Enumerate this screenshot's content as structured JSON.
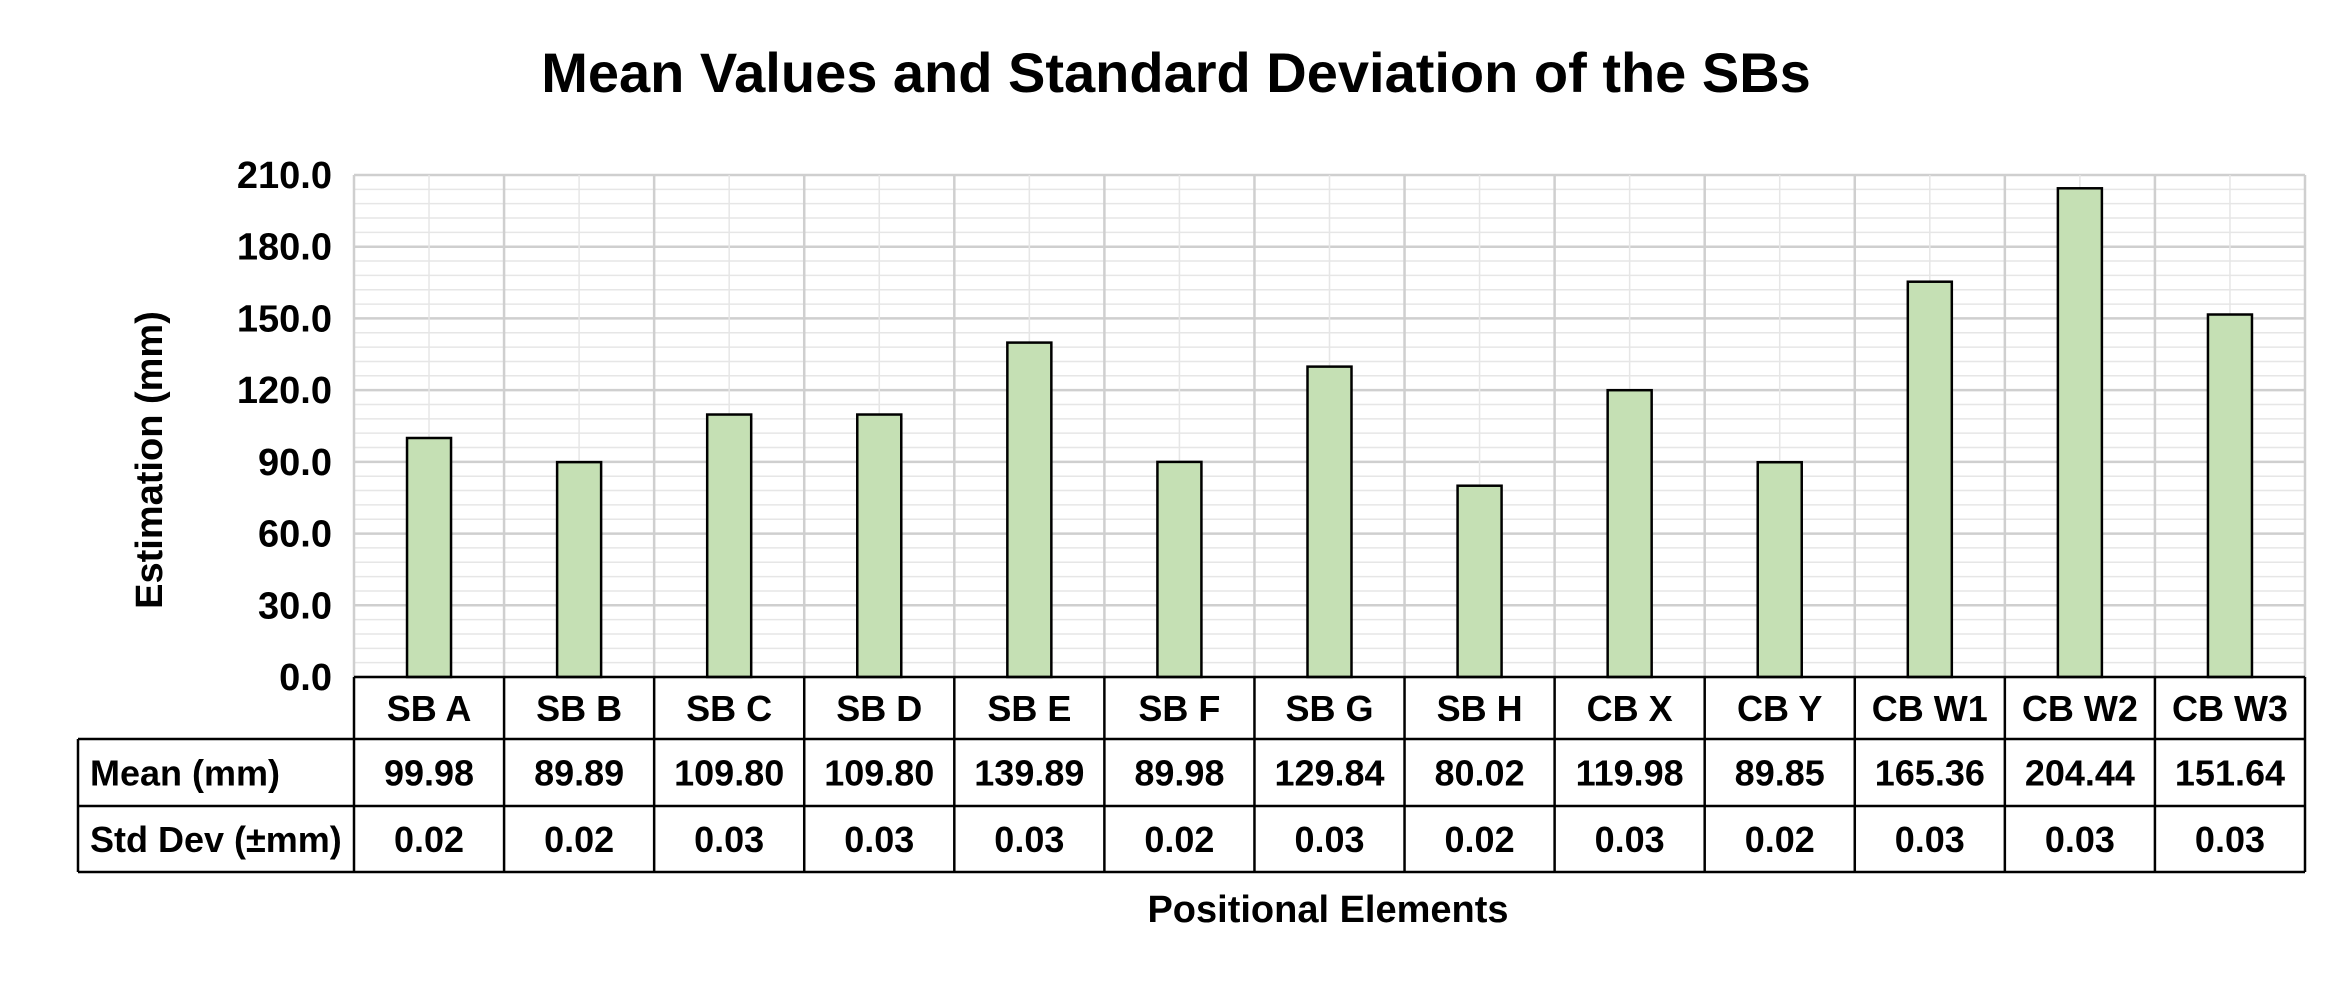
{
  "chart_data": {
    "type": "bar",
    "title": "Mean Values and Standard Deviation of the SBs",
    "xlabel": "Positional Elements",
    "ylabel": "Estimation (mm)",
    "ylim": [
      0,
      210
    ],
    "yticks": [
      "0.0",
      "30.0",
      "60.0",
      "90.0",
      "120.0",
      "150.0",
      "180.0",
      "210.0"
    ],
    "grid": true,
    "bar_color": "#c5e0b4",
    "categories": [
      "SB A",
      "SB B",
      "SB C",
      "SB D",
      "SB E",
      "SB F",
      "SB G",
      "SB H",
      "CB X",
      "CB Y",
      "CB W1",
      "CB W2",
      "CB W3"
    ],
    "series": [
      {
        "name": "Mean (mm)",
        "values": [
          99.98,
          89.89,
          109.8,
          109.8,
          139.89,
          89.98,
          129.84,
          80.02,
          119.98,
          89.85,
          165.36,
          204.44,
          151.64
        ]
      }
    ],
    "table": {
      "rows": [
        {
          "label": "Mean (mm)",
          "cells": [
            "99.98",
            "89.89",
            "109.80",
            "109.80",
            "139.89",
            "89.98",
            "129.84",
            "80.02",
            "119.98",
            "89.85",
            "165.36",
            "204.44",
            "151.64"
          ]
        },
        {
          "label": "Std Dev (±mm)",
          "cells": [
            "0.02",
            "0.02",
            "0.03",
            "0.03",
            "0.03",
            "0.02",
            "0.03",
            "0.02",
            "0.03",
            "0.02",
            "0.03",
            "0.03",
            "0.03"
          ]
        }
      ]
    }
  }
}
